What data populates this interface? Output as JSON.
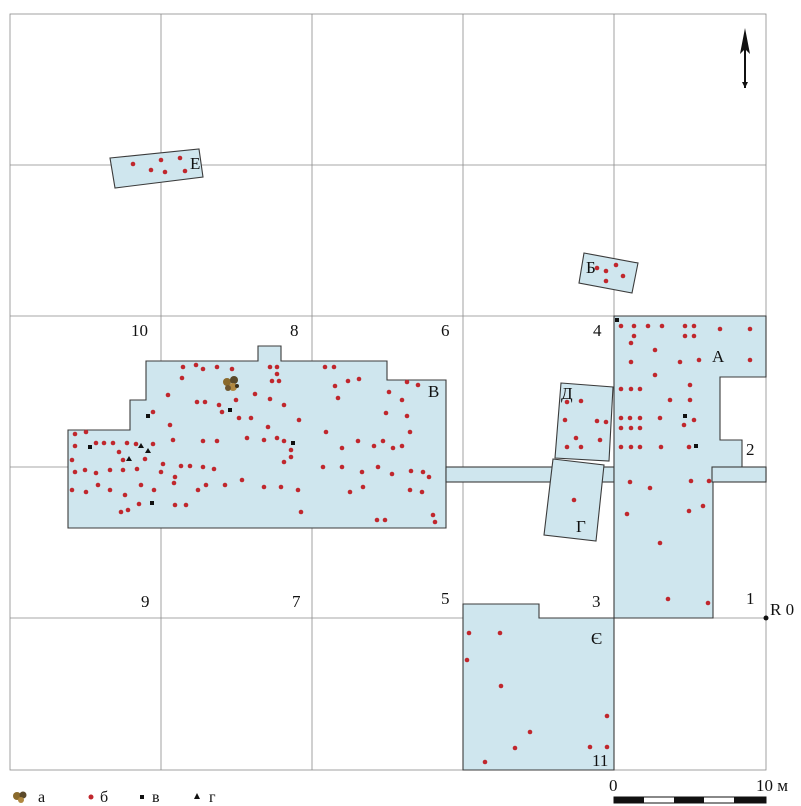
{
  "grid_labels": [
    "10",
    "8",
    "6",
    "4",
    "2",
    "9",
    "7",
    "5",
    "3",
    "1",
    "11"
  ],
  "area_labels": [
    "А",
    "Б",
    "В",
    "Г",
    "Д",
    "Е",
    "Є"
  ],
  "datum_label": "R 0",
  "scale_bar": {
    "start": "0",
    "end": "10 м"
  },
  "legend": [
    {
      "symbol": "a",
      "label": "а"
    },
    {
      "symbol": "б",
      "label": "б"
    },
    {
      "symbol": "в",
      "label": "в"
    },
    {
      "symbol": "г",
      "label": "г"
    }
  ],
  "colors": {
    "area_fill": "#cfe6ee",
    "dot": "#c0272d",
    "grid": "#8a8a8a"
  },
  "icons": {
    "north": "north-arrow-icon",
    "find": "ceramic-cluster-icon"
  }
}
